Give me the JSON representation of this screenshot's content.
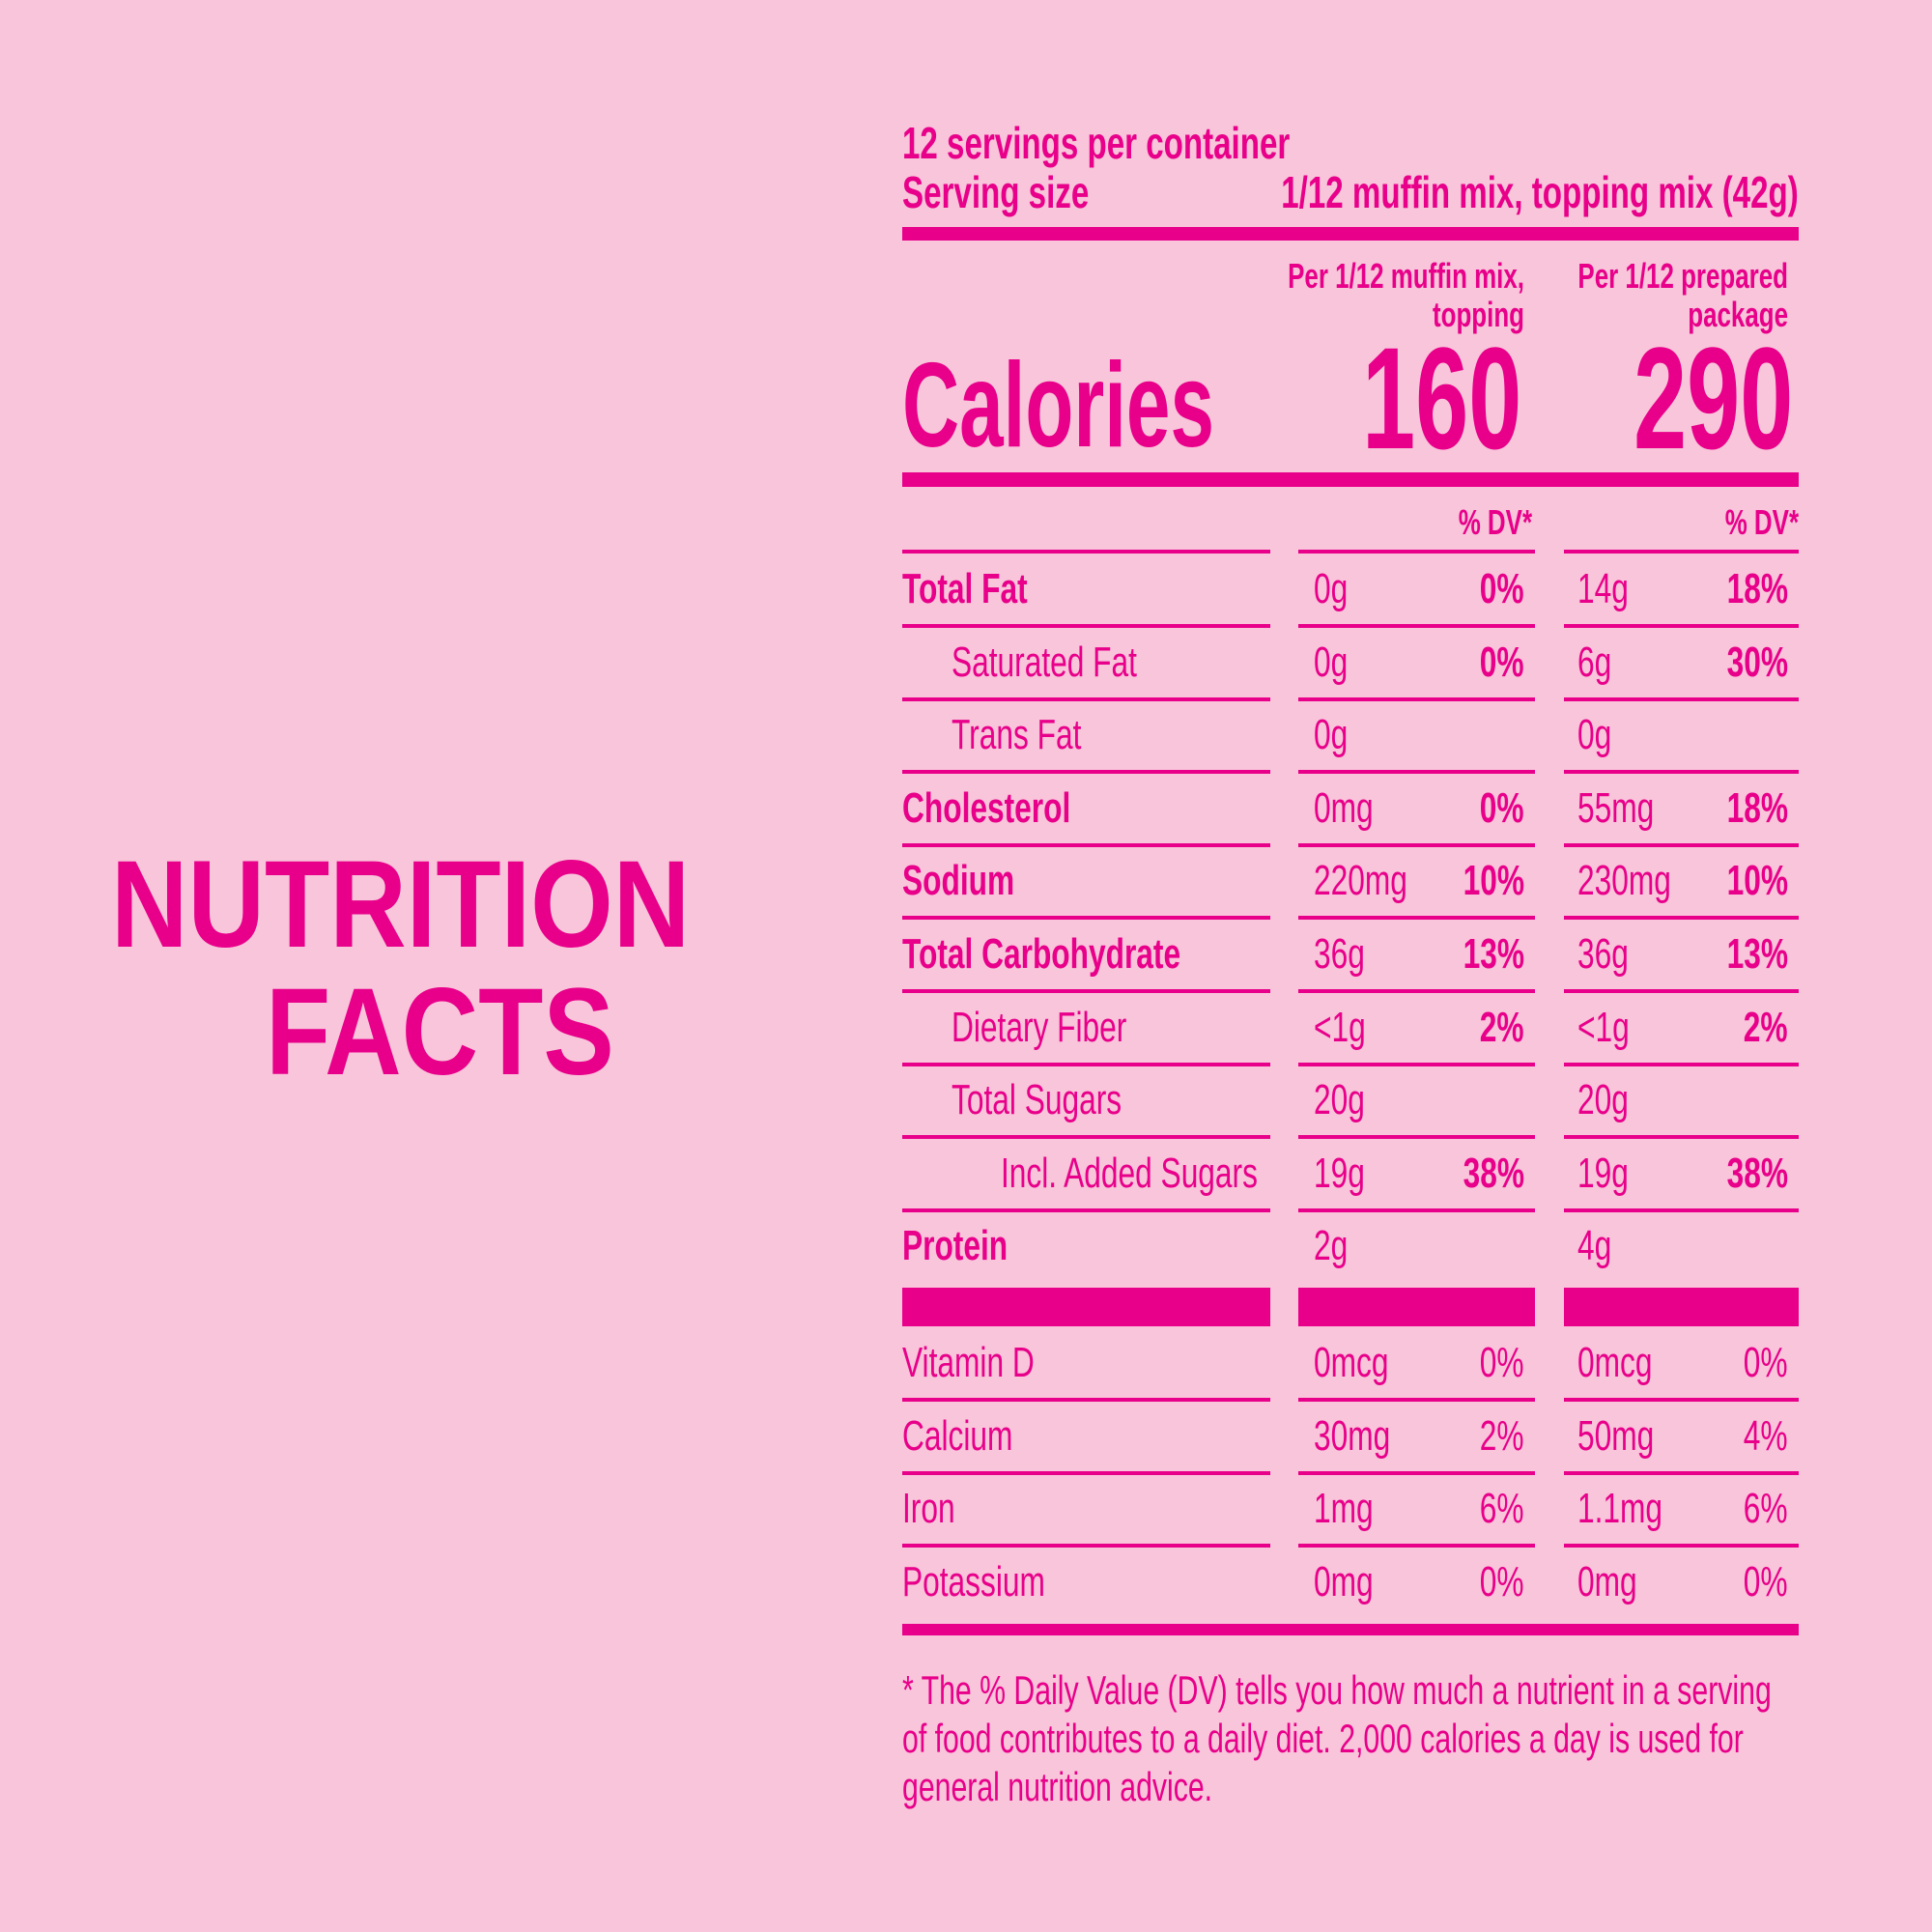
{
  "title": [
    "NUTRITION",
    "FACTS"
  ],
  "header": {
    "servings": "12 servings per container",
    "serving_size_label": "Serving size",
    "serving_size": "1/12 muffin mix, topping mix (42g)",
    "columns": [
      "Per 1/12 muffin mix, topping",
      "Per 1/12 prepared package"
    ],
    "calories_label": "Calories",
    "calories": [
      "160",
      "290"
    ],
    "dv_header": [
      "% DV*",
      "% DV*"
    ]
  },
  "nutrients": [
    {
      "name": "Total Fat",
      "bold": true,
      "indent": 0,
      "a": [
        "0g",
        "0%"
      ],
      "b": [
        "14g",
        "18%"
      ]
    },
    {
      "name": "Saturated Fat",
      "bold": false,
      "indent": 1,
      "a": [
        "0g",
        "0%"
      ],
      "b": [
        "6g",
        "30%"
      ]
    },
    {
      "name": "Trans Fat",
      "bold": false,
      "indent": 1,
      "a": [
        "0g"
      ],
      "b": [
        "0g"
      ]
    },
    {
      "name": "Cholesterol",
      "bold": true,
      "indent": 0,
      "a": [
        "0mg",
        "0%"
      ],
      "b": [
        "55mg",
        "18%"
      ]
    },
    {
      "name": "Sodium",
      "bold": true,
      "indent": 0,
      "a": [
        "220mg",
        "10%"
      ],
      "b": [
        "230mg",
        "10%"
      ]
    },
    {
      "name": "Total Carbohydrate",
      "bold": true,
      "indent": 0,
      "a": [
        "36g",
        "13%"
      ],
      "b": [
        "36g",
        "13%"
      ]
    },
    {
      "name": "Dietary Fiber",
      "bold": false,
      "indent": 1,
      "a": [
        "<1g",
        "2%"
      ],
      "b": [
        "<1g",
        "2%"
      ]
    },
    {
      "name": "Total Sugars",
      "bold": false,
      "indent": 1,
      "a": [
        "20g"
      ],
      "b": [
        "20g"
      ]
    },
    {
      "name": "Incl. Added Sugars",
      "bold": false,
      "indent": 2,
      "a": [
        "19g",
        "38%"
      ],
      "b": [
        "19g",
        "38%"
      ]
    },
    {
      "name": "Protein",
      "bold": true,
      "indent": 0,
      "a": [
        "2g"
      ],
      "b": [
        "4g"
      ]
    }
  ],
  "vitamins": [
    {
      "name": "Vitamin D",
      "a": [
        "0mcg",
        "0%"
      ],
      "b": [
        "0mcg",
        "0%"
      ]
    },
    {
      "name": "Calcium",
      "a": [
        "30mg",
        "2%"
      ],
      "b": [
        "50mg",
        "4%"
      ]
    },
    {
      "name": "Iron",
      "a": [
        "1mg",
        "6%"
      ],
      "b": [
        "1.1mg",
        "6%"
      ]
    },
    {
      "name": "Potassium",
      "a": [
        "0mg",
        "0%"
      ],
      "b": [
        "0mg",
        "0%"
      ]
    }
  ],
  "footnote": "* The % Daily Value (DV) tells you how much a nutrient in a serving of food contributes to a daily diet. 2,000 calories a day is used for general nutrition advice."
}
